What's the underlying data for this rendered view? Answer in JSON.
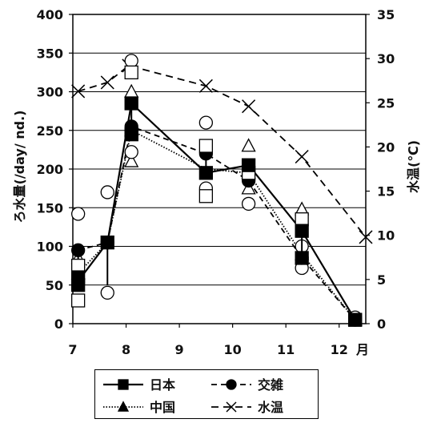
{
  "chart_data": {
    "type": "line",
    "x_unit_label": "月",
    "ylabel_left": "ろ水量(/day/ nd.)",
    "ylabel_right": "水温(℃)",
    "ylim_left": [
      0,
      400
    ],
    "ylim_right": [
      0,
      35
    ],
    "xlim": [
      7,
      12.5
    ],
    "x_ticks": [
      "7",
      "8",
      "9",
      "10",
      "11",
      "12"
    ],
    "y_ticks_left": [
      "0",
      "50",
      "100",
      "150",
      "200",
      "250",
      "300",
      "350",
      "400"
    ],
    "y_ticks_right": [
      "0",
      "5",
      "10",
      "15",
      "20",
      "25",
      "30",
      "35"
    ],
    "grid": "horizontal",
    "legend_position": "bottom",
    "series": [
      {
        "name": "日本",
        "axis": "left",
        "style": "solid",
        "marker": "square",
        "line_x": [
          7.1,
          7.65,
          8.1,
          9.5,
          10.3,
          11.3,
          12.3
        ],
        "line_y": [
          55,
          105,
          285,
          195,
          205,
          120,
          5
        ],
        "points": [
          [
            7.1,
            50
          ],
          [
            7.1,
            60
          ],
          [
            7.65,
            105
          ],
          [
            8.1,
            285
          ],
          [
            8.1,
            245
          ],
          [
            9.5,
            195
          ],
          [
            10.3,
            205
          ],
          [
            11.3,
            120
          ],
          [
            11.3,
            85
          ],
          [
            12.3,
            5
          ]
        ],
        "open_points": [
          [
            7.1,
            30
          ],
          [
            7.1,
            75
          ],
          [
            8.1,
            325
          ],
          [
            8.1,
            245
          ],
          [
            9.5,
            230
          ],
          [
            9.5,
            165
          ],
          [
            10.3,
            195
          ],
          [
            11.3,
            135
          ],
          [
            12.3,
            5
          ]
        ],
        "ranges": [
          [
            7.1,
            50,
            100
          ],
          [
            7.65,
            50,
            105
          ],
          [
            8.1,
            245,
            285
          ],
          [
            9.5,
            195,
            230
          ],
          [
            11.3,
            85,
            135
          ]
        ]
      },
      {
        "name": "交雑",
        "axis": "left",
        "style": "dash",
        "marker": "circle",
        "line_x": [
          7.1,
          7.65,
          8.1,
          9.5,
          10.3,
          11.3,
          12.3
        ],
        "line_y": [
          95,
          105,
          255,
          220,
          185,
          85,
          5
        ],
        "points": [
          [
            7.1,
            95
          ],
          [
            7.65,
            105
          ],
          [
            8.1,
            255
          ],
          [
            9.5,
            220
          ],
          [
            10.3,
            185
          ],
          [
            11.3,
            85
          ],
          [
            12.3,
            5
          ]
        ],
        "open_points": [
          [
            7.1,
            142
          ],
          [
            7.65,
            170
          ],
          [
            7.65,
            40
          ],
          [
            8.1,
            340
          ],
          [
            8.1,
            222
          ],
          [
            9.5,
            260
          ],
          [
            9.5,
            175
          ],
          [
            10.3,
            155
          ],
          [
            11.3,
            100
          ],
          [
            11.3,
            72
          ],
          [
            12.3,
            8
          ]
        ]
      },
      {
        "name": "中国",
        "axis": "left",
        "style": "dotted",
        "marker": "triangle",
        "line_x": [
          7.1,
          7.65,
          8.1,
          9.5,
          10.3,
          11.3,
          12.3
        ],
        "line_y": [
          65,
          105,
          250,
          200,
          195,
          90,
          5
        ],
        "points": [
          [
            7.1,
            65
          ],
          [
            8.1,
            250
          ],
          [
            10.3,
            195
          ],
          [
            11.3,
            90
          ],
          [
            12.3,
            5
          ]
        ],
        "open_points": [
          [
            7.1,
            85
          ],
          [
            8.1,
            210
          ],
          [
            8.1,
            300
          ],
          [
            10.3,
            230
          ],
          [
            10.3,
            175
          ],
          [
            11.3,
            148
          ],
          [
            12.3,
            5
          ]
        ]
      },
      {
        "name": "水温",
        "axis": "right",
        "style": "dashed",
        "marker": "x",
        "x": [
          7.1,
          7.65,
          8.05,
          9.5,
          10.3,
          11.3,
          12.5
        ],
        "y": [
          26.3,
          27.3,
          29.2,
          26.9,
          24.6,
          18.9,
          9.8
        ]
      }
    ]
  }
}
